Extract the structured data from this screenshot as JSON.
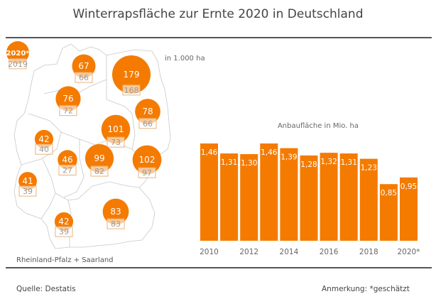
{
  "title": "Winterrapsfläche zur Ernte 2020 in Deutschland",
  "map": {
    "unit_label": "in 1.000 ha",
    "legend": {
      "current_label": "2020*",
      "previous_label": "2019"
    },
    "note": "Rheinland-Pfalz + Saarland",
    "regions": [
      {
        "v2020": 67,
        "v2019": 66
      },
      {
        "v2020": 179,
        "v2019": 168
      },
      {
        "v2020": 76,
        "v2019": 72
      },
      {
        "v2020": 78,
        "v2019": 66
      },
      {
        "v2020": 101,
        "v2019": 73
      },
      {
        "v2020": 42,
        "v2019": 40
      },
      {
        "v2020": 46,
        "v2019": 27
      },
      {
        "v2020": 99,
        "v2019": 82
      },
      {
        "v2020": 102,
        "v2019": 97
      },
      {
        "v2020": 41,
        "v2019": 39
      },
      {
        "v2020": 42,
        "v2019": 39
      },
      {
        "v2020": 83,
        "v2019": 83
      }
    ]
  },
  "chart_data": {
    "type": "bar",
    "title": "Anbaufläche in Mio. ha",
    "categories": [
      "2010",
      "2011",
      "2012",
      "2013",
      "2014",
      "2015",
      "2016",
      "2017",
      "2018",
      "2019",
      "2020*"
    ],
    "values": [
      1.46,
      1.31,
      1.3,
      1.46,
      1.39,
      1.28,
      1.32,
      1.31,
      1.23,
      0.85,
      0.95
    ],
    "value_labels": [
      "1,46",
      "1,31",
      "1,30",
      "1,46",
      "1,39",
      "1,28",
      "1,32",
      "1,31",
      "1,23",
      "0,85",
      "0,95"
    ],
    "tick_labels": [
      "2010",
      "",
      "2012",
      "",
      "2014",
      "",
      "2016",
      "",
      "2018",
      "",
      "2020*"
    ],
    "ylim": [
      0,
      1.46
    ],
    "grid": false,
    "color": "#f47b00"
  },
  "footer": {
    "source": "Quelle:  Destatis",
    "note": "Anmerkung: *geschätzt"
  },
  "colors": {
    "accent": "#f47b00",
    "box_border": "#e9b27c",
    "box_text": "#9a9a9a"
  }
}
